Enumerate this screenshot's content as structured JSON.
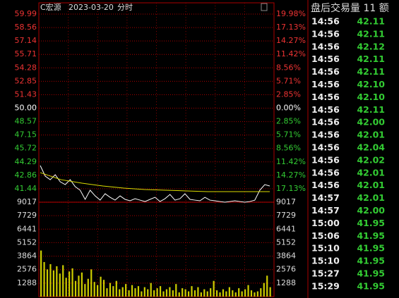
{
  "chart_data": {
    "type": "line",
    "title": "C宏源",
    "date": "2023-03-20",
    "mode": "分时",
    "ylim": [
      40.01,
      59.99
    ],
    "yticks": [
      59.99,
      58.56,
      57.14,
      55.71,
      54.28,
      52.85,
      51.43,
      {
        "value": 50,
        "label": "50.00"
      },
      48.57,
      47.15,
      45.72,
      44.29,
      42.86,
      41.44
    ],
    "base": 50,
    "pct_ticks": [
      {
        "value": 19.98,
        "label": "19.98%"
      },
      {
        "value": 17.13,
        "label": "17.13%"
      },
      {
        "value": 14.27,
        "label": "14.27%"
      },
      {
        "value": 11.42,
        "label": "11.42%"
      },
      {
        "value": 8.56,
        "label": "8.56%"
      },
      {
        "value": 5.71,
        "label": "5.71%"
      },
      {
        "value": 2.85,
        "label": "2.85%"
      },
      {
        "value": 0,
        "label": "0.00%"
      },
      {
        "value": -2.85,
        "label": "2.85%"
      },
      {
        "value": -5.71,
        "label": "5.71%"
      },
      {
        "value": -8.56,
        "label": "8.56%"
      },
      {
        "value": -11.42,
        "label": "11.42%"
      },
      {
        "value": -14.27,
        "label": "14.27%"
      },
      {
        "value": -17.13,
        "label": "17.13%"
      }
    ],
    "up_color": "#e33",
    "flat_color": "#fff",
    "down_color": "#3c3",
    "series": [
      {
        "name": "price",
        "color": "#fff",
        "values": [
          43.9,
          42.78,
          42.4,
          42.93,
          42.18,
          41.88,
          42.4,
          41.66,
          41.28,
          40.31,
          41.28,
          40.68,
          40.23,
          40.91,
          40.53,
          40.23,
          40.68,
          40.31,
          40.16,
          40.38,
          40.23,
          40.08,
          40.31,
          40.53,
          40.08,
          40.38,
          40.83,
          40.23,
          40.38,
          40.91,
          40.31,
          40.23,
          40.16,
          40.53,
          40.23,
          40.16,
          40.08,
          40.01,
          40.08,
          40.16,
          40.08,
          40.01,
          40.08,
          40.23,
          41.28,
          41.88,
          41.73
        ]
      },
      {
        "name": "average",
        "color": "#dd0",
        "values": [
          43.15,
          42.4,
          42.03,
          41.73,
          41.51,
          41.36,
          41.28,
          41.21,
          41.13,
          41.13,
          41.13,
          41.13
        ]
      }
    ],
    "volume": {
      "type": "bar",
      "color": "#cc0",
      "ylim": [
        0,
        9017
      ],
      "yticks": [
        9017,
        7729,
        6441,
        5152,
        3864,
        2576,
        1288
      ],
      "values": [
        4400,
        3300,
        2600,
        3100,
        2500,
        2900,
        2200,
        3000,
        1800,
        2400,
        2700,
        1500,
        2000,
        2300,
        1200,
        1700,
        2600,
        1400,
        1100,
        1900,
        1600,
        800,
        1300,
        1000,
        1500,
        700,
        900,
        1200,
        600,
        1100,
        800,
        1000,
        500,
        900,
        700,
        1300,
        600,
        800,
        1000,
        500,
        700,
        900,
        600,
        1200,
        400,
        800,
        700,
        500,
        1000,
        600,
        900,
        400,
        700,
        500,
        800,
        1500,
        600,
        400,
        700,
        500,
        900,
        600,
        400,
        800,
        500,
        700,
        1100,
        600,
        400,
        500,
        800,
        1300,
        2000,
        900
      ]
    }
  },
  "trades": {
    "title": "盘后交易量 11 额",
    "rows": [
      [
        "14:56",
        "42.11"
      ],
      [
        "14:56",
        "42.11"
      ],
      [
        "14:56",
        "42.12"
      ],
      [
        "14:56",
        "42.11"
      ],
      [
        "14:56",
        "42.11"
      ],
      [
        "14:56",
        "42.10"
      ],
      [
        "14:56",
        "42.10"
      ],
      [
        "14:56",
        "42.11"
      ],
      [
        "14:56",
        "42.00"
      ],
      [
        "14:56",
        "42.01"
      ],
      [
        "14:56",
        "42.04"
      ],
      [
        "14:56",
        "42.02"
      ],
      [
        "14:56",
        "42.01"
      ],
      [
        "14:56",
        "42.01"
      ],
      [
        "14:57",
        "42.01"
      ],
      [
        "14:57",
        "42.00"
      ],
      [
        "15:00",
        "41.95"
      ],
      [
        "15:06",
        "41.95"
      ],
      [
        "15:10",
        "41.95"
      ],
      [
        "15:10",
        "41.95"
      ],
      [
        "15:27",
        "41.95"
      ],
      [
        "15:29",
        "41.95"
      ]
    ]
  }
}
